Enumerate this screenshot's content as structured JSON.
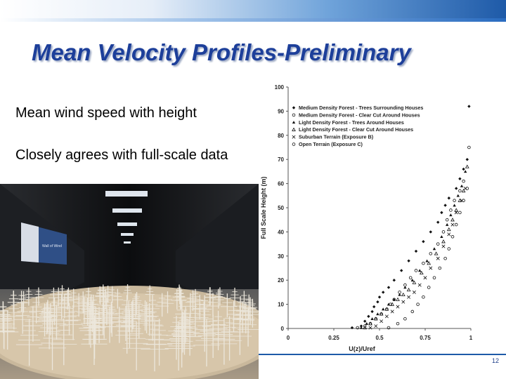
{
  "slide": {
    "title": "Mean Velocity Profiles-Preliminary",
    "bullets": [
      "Mean wind speed with height",
      "Closely agrees with full-scale data"
    ],
    "page_number": "12",
    "photo_sign_text": "Wall of Wind",
    "colors": {
      "title": "#1d3f9a",
      "accent": "#1e5aa8"
    }
  },
  "chart_data": {
    "type": "scatter",
    "xlabel": "U(z)/Uref",
    "ylabel": "Full Scale Height (m)",
    "xlim": [
      0,
      1
    ],
    "ylim": [
      0,
      100
    ],
    "xticks": [
      0,
      0.25,
      0.5,
      0.75,
      1
    ],
    "xtick_labels": [
      "0",
      "0.25",
      "0.5",
      "0.75",
      "1"
    ],
    "yticks": [
      0,
      10,
      20,
      30,
      40,
      50,
      60,
      70,
      80,
      90,
      100
    ],
    "legend_position": "top-left",
    "grid": false,
    "series": [
      {
        "name": "Medium Density Forest - Trees Surrounding Houses",
        "marker": "diamond-filled",
        "x": [
          0.35,
          0.4,
          0.42,
          0.44,
          0.46,
          0.47,
          0.49,
          0.5,
          0.52,
          0.55,
          0.58,
          0.62,
          0.66,
          0.7,
          0.74,
          0.78,
          0.82,
          0.84,
          0.86,
          0.88,
          0.92,
          0.94,
          0.96,
          0.98,
          0.99
        ],
        "y": [
          0.3,
          1,
          3,
          5,
          7,
          9,
          11,
          13,
          15,
          17,
          20,
          24,
          28,
          32,
          36,
          40,
          44,
          48,
          51,
          54,
          58,
          62,
          66,
          70,
          92
        ]
      },
      {
        "name": "Medium Density Forest - Clear Cut Around Houses",
        "marker": "circle-open",
        "x": [
          0.38,
          0.42,
          0.45,
          0.48,
          0.51,
          0.54,
          0.56,
          0.58,
          0.61,
          0.64,
          0.67,
          0.7,
          0.74,
          0.78,
          0.82,
          0.85,
          0.87,
          0.89,
          0.91,
          0.94,
          0.96
        ],
        "y": [
          0.3,
          1,
          2,
          4,
          6,
          8,
          10,
          12,
          15,
          18,
          21,
          24,
          27,
          31,
          35,
          40,
          45,
          49,
          53,
          57,
          61
        ]
      },
      {
        "name": "Light Density Forest - Trees Around Houses",
        "marker": "triangle-filled",
        "x": [
          0.4,
          0.43,
          0.46,
          0.49,
          0.52,
          0.55,
          0.58,
          0.61,
          0.64,
          0.68,
          0.72,
          0.76,
          0.8,
          0.84,
          0.87,
          0.89,
          0.91,
          0.93,
          0.95,
          0.97
        ],
        "y": [
          0.3,
          2,
          4,
          6,
          8,
          10,
          12,
          14,
          17,
          20,
          24,
          28,
          33,
          38,
          43,
          47,
          51,
          55,
          59,
          65
        ]
      },
      {
        "name": "Light Density Forest - Clear Cut Around Houses",
        "marker": "triangle-open",
        "x": [
          0.42,
          0.45,
          0.48,
          0.51,
          0.54,
          0.57,
          0.6,
          0.63,
          0.66,
          0.69,
          0.73,
          0.77,
          0.81,
          0.85,
          0.88,
          0.9,
          0.92,
          0.94,
          0.96,
          0.98
        ],
        "y": [
          0.3,
          2,
          4,
          6,
          8,
          10,
          12,
          14,
          16,
          19,
          23,
          27,
          31,
          36,
          41,
          45,
          49,
          53,
          57,
          67
        ]
      },
      {
        "name": "Suburban Terrain (Exposure B)",
        "marker": "x",
        "x": [
          0.45,
          0.48,
          0.51,
          0.54,
          0.57,
          0.6,
          0.63,
          0.66,
          0.69,
          0.72,
          0.75,
          0.78,
          0.82,
          0.85,
          0.88,
          0.9,
          0.92,
          0.95,
          0.97
        ],
        "y": [
          0.3,
          1,
          3,
          5,
          7,
          9,
          11,
          13,
          15,
          18,
          21,
          25,
          29,
          34,
          39,
          43,
          48,
          53,
          58
        ]
      },
      {
        "name": "Open Terrain (Exposure C)",
        "marker": "circle-open",
        "x": [
          0.55,
          0.6,
          0.64,
          0.68,
          0.71,
          0.74,
          0.77,
          0.8,
          0.83,
          0.86,
          0.88,
          0.9,
          0.92,
          0.94,
          0.96,
          0.98,
          0.99
        ],
        "y": [
          0.3,
          2,
          4,
          7,
          10,
          13,
          17,
          21,
          25,
          29,
          33,
          38,
          43,
          48,
          53,
          58,
          75
        ]
      }
    ]
  }
}
